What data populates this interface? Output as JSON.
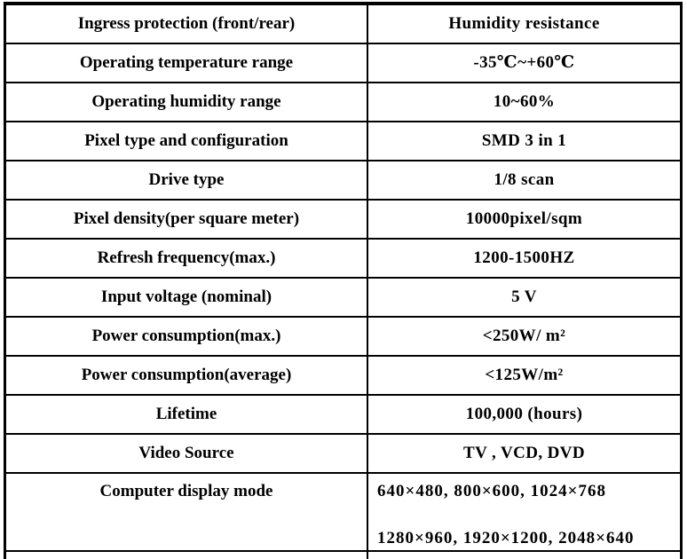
{
  "table": {
    "rows": [
      {
        "label": "Ingress protection (front/rear)",
        "value": "Humidity resistance"
      },
      {
        "label": "Operating temperature range",
        "value": "-35℃~+60℃"
      },
      {
        "label": "Operating humidity range",
        "value": "10~60%"
      },
      {
        "label": "Pixel type and configuration",
        "value": "SMD 3 in 1"
      },
      {
        "label": "Drive type",
        "value": "1/8 scan"
      },
      {
        "label": "Pixel density(per square meter)",
        "value": "10000pixel/sqm"
      },
      {
        "label": "Refresh frequency(max.)",
        "value": "1200-1500HZ"
      },
      {
        "label": "Input voltage (nominal)",
        "value": "5 V"
      },
      {
        "label": "Power consumption(max.)",
        "value": "<250W/ m²"
      },
      {
        "label": "Power consumption(average)",
        "value": "<125W/m²"
      },
      {
        "label": "Lifetime",
        "value": "100,000 (hours)"
      },
      {
        "label": "Video Source",
        "value": "TV , VCD, DVD"
      },
      {
        "label": "Computer display mode",
        "value_line1": "640×480, 800×600, 1024×768",
        "value_line2": "1280×960, 1920×1200, 2048×640"
      }
    ]
  }
}
